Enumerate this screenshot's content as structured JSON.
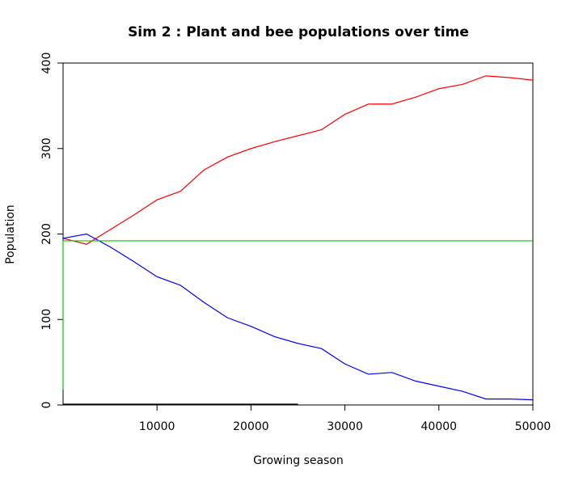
{
  "chart_data": {
    "type": "line",
    "title": "Sim 2 : Plant and bee populations over time",
    "x_label": "Growing season",
    "y_label": "Population",
    "xlim": [
      0,
      50000
    ],
    "xticks": [
      10000,
      20000,
      30000,
      40000,
      50000
    ],
    "ylim": [
      0,
      400
    ],
    "yticks": [
      0,
      100,
      200,
      300,
      400
    ],
    "series": [
      {
        "color": "#ff0000",
        "x": [
          0,
          2500,
          5000,
          7500,
          10000,
          12500,
          15000,
          17500,
          20000,
          22500,
          25000,
          27500,
          30000,
          32500,
          35000,
          37500,
          40000,
          42500,
          45000,
          47500,
          50000
        ],
        "values": [
          195,
          188,
          205,
          222,
          240,
          250,
          275,
          290,
          300,
          308,
          315,
          322,
          340,
          352,
          352,
          360,
          370,
          375,
          385,
          383,
          380
        ]
      },
      {
        "color": "#0000ff",
        "x": [
          0,
          2500,
          5000,
          7500,
          10000,
          12500,
          15000,
          17500,
          20000,
          22500,
          25000,
          27500,
          30000,
          32500,
          35000,
          37500,
          40000,
          42500,
          45000,
          47500,
          50000
        ],
        "values": [
          195,
          200,
          185,
          168,
          150,
          140,
          120,
          102,
          92,
          80,
          72,
          66,
          48,
          36,
          38,
          28,
          22,
          16,
          7,
          7,
          6
        ]
      },
      {
        "color": "#00cc00",
        "x": [
          0,
          0,
          50000
        ],
        "values": [
          18,
          192,
          192
        ]
      },
      {
        "color": "#000000",
        "x": [
          0,
          25000
        ],
        "values": [
          1,
          1
        ]
      }
    ]
  }
}
